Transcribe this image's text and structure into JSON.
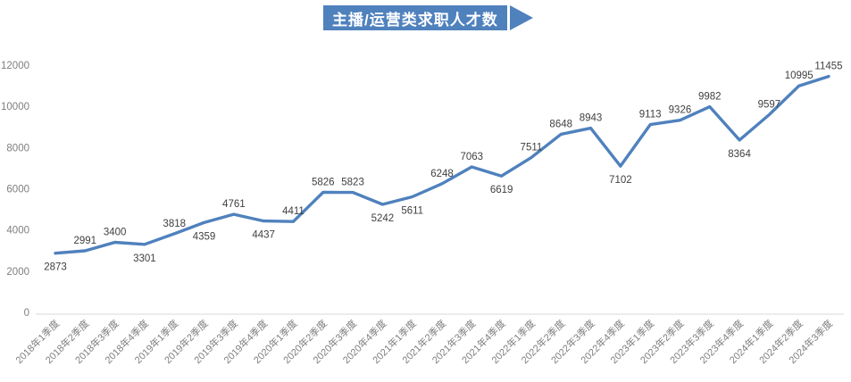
{
  "title": "主播/运营类求职人才数",
  "colors": {
    "line": "#4F81BD",
    "banner_bg": "#4F81BD",
    "data_label": "#404040",
    "axis_text": "#7F7F7F",
    "axis_line": "#D9D9D9",
    "background": "#FFFFFF"
  },
  "chart_data": {
    "type": "line",
    "title": "主播/运营类求职人才数",
    "xlabel": "",
    "ylabel": "",
    "categories": [
      "2018年1季度",
      "2018年2季度",
      "2018年3季度",
      "2018年4季度",
      "2019年1季度",
      "2019年2季度",
      "2019年3季度",
      "2019年4季度",
      "2020年1季度",
      "2020年2季度",
      "2020年3季度",
      "2020年4季度",
      "2021年1季度",
      "2021年2季度",
      "2021年3季度",
      "2021年4季度",
      "2022年1季度",
      "2022年2季度",
      "2022年3季度",
      "2022年4季度",
      "2023年1季度",
      "2023年2季度",
      "2023年3季度",
      "2023年4季度",
      "2024年1季度",
      "2024年2季度",
      "2024年3季度"
    ],
    "values": [
      2873,
      2991,
      3400,
      3301,
      3818,
      4359,
      4761,
      4437,
      4411,
      5826,
      5823,
      5242,
      5611,
      6248,
      7063,
      6619,
      7511,
      8648,
      8943,
      7102,
      9113,
      9326,
      9982,
      8364,
      9597,
      10995,
      11455
    ],
    "label_positions": [
      "below",
      "above",
      "above",
      "below",
      "above",
      "below",
      "above",
      "below",
      "above",
      "above",
      "above",
      "below",
      "below",
      "above",
      "above",
      "below",
      "above",
      "above",
      "above",
      "below",
      "above",
      "above",
      "above",
      "below",
      "above",
      "above",
      "above"
    ],
    "ylim": [
      0,
      12000
    ],
    "yticks": [
      0,
      2000,
      4000,
      6000,
      8000,
      10000,
      12000
    ],
    "grid": "off",
    "legend": "none",
    "markers": "none",
    "x_label_rotation": 45
  }
}
